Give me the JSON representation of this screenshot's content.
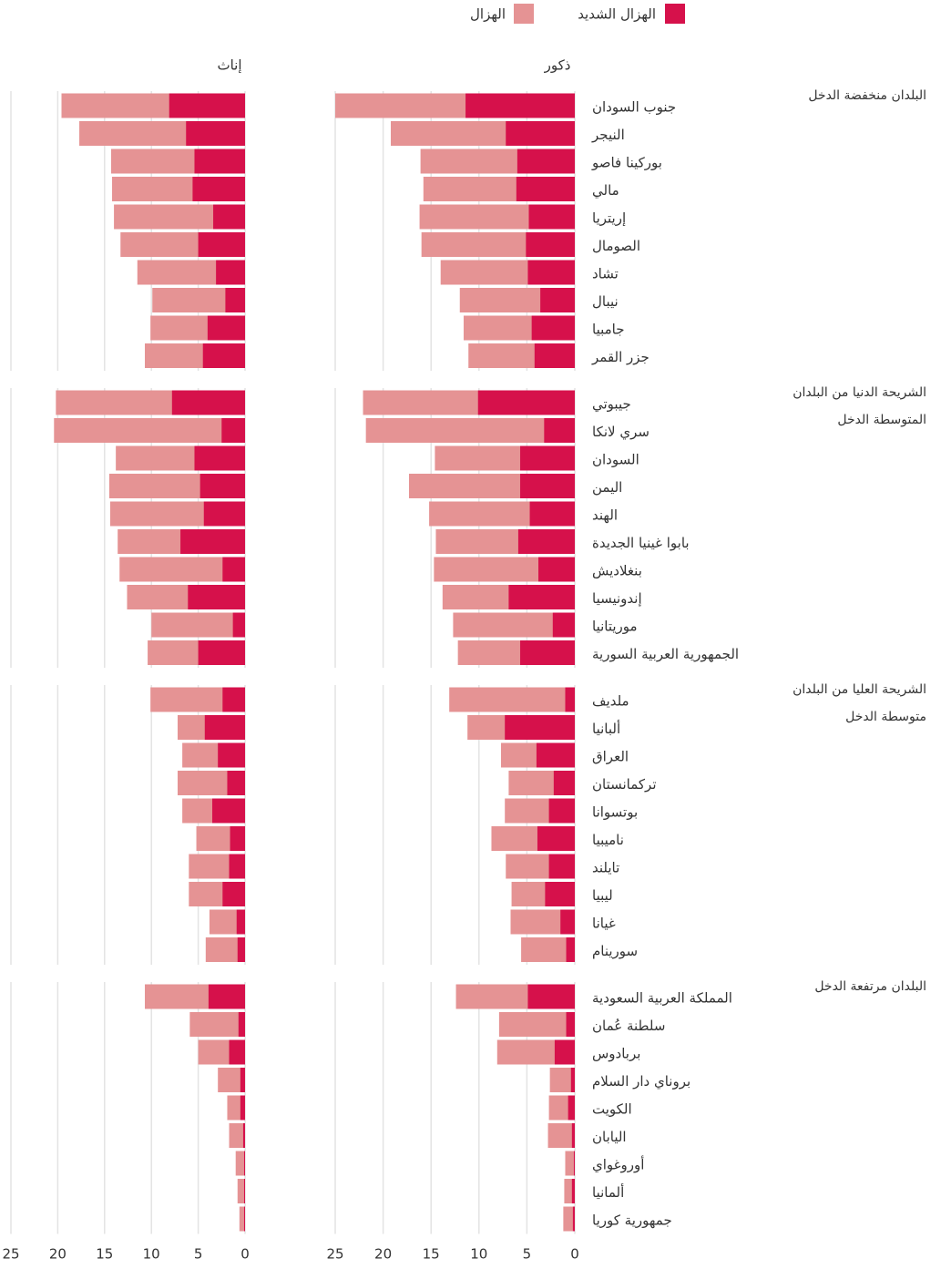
{
  "chart_data": {
    "type": "bar",
    "series": [
      {
        "name": "الهزال الشديد",
        "color": "#d6114b"
      },
      {
        "name": "الهزال",
        "color": "#e59394"
      }
    ],
    "groups": [
      {
        "name": "البلدان منخفضة الدخل",
        "categories": [
          "جنوب السودان",
          "النيجر",
          "بوركينا فاصو",
          "مالي",
          "إريتريا",
          "الصومال",
          "تشاد",
          "نيبال",
          "جامبيا",
          "جزر القمر"
        ]
      },
      {
        "name": "الشريحة الدنيا من البلدان المتوسطة الدخل",
        "categories": [
          "جيبوتي",
          "سري لانكا",
          "السودان",
          "اليمن",
          "الهند",
          "بابوا غينيا الجديدة",
          "بنغلاديش",
          "إندونيسيا",
          "موريتانيا",
          "الجمهورية العربية السورية"
        ]
      },
      {
        "name": "الشريحة العليا من البلدان متوسطة الدخل",
        "categories": [
          "ملديف",
          "ألبانيا",
          "العراق",
          "تركمانستان",
          "بوتسوانا",
          "ناميبيا",
          "تايلند",
          "ليبيا",
          "غيانا",
          "سورينام"
        ]
      },
      {
        "name": "البلدان مرتفعة الدخل",
        "categories": [
          "المملكة العربية السعودية",
          "سلطنة عُمان",
          "بربادوس",
          "بروناي دار السلام",
          "الكويت",
          "اليابان",
          "أوروغواي",
          "ألمانيا",
          "جمهورية كوريا"
        ]
      }
    ],
    "panels": [
      {
        "title": "ذكور",
        "xlim": [
          0,
          25
        ],
        "xticks": [
          0,
          5,
          10,
          15,
          20,
          25
        ],
        "values": [
          [
            [
              11.4,
              7.2,
              6.0,
              6.1,
              4.8,
              5.1,
              4.9,
              3.6,
              4.5,
              4.2
            ],
            [
              25.0,
              19.2,
              16.1,
              15.8,
              16.2,
              16.0,
              14.0,
              12.0,
              11.6,
              11.1
            ]
          ],
          [
            [
              10.1,
              3.2,
              5.7,
              5.7,
              4.7,
              5.9,
              3.8,
              6.9,
              2.3,
              5.7
            ],
            [
              22.1,
              21.8,
              14.6,
              17.3,
              15.2,
              14.5,
              14.7,
              13.8,
              12.7,
              12.2
            ]
          ],
          [
            [
              1.0,
              7.3,
              4.0,
              2.2,
              2.7,
              3.9,
              2.7,
              3.1,
              1.5,
              0.9
            ],
            [
              13.1,
              11.2,
              7.7,
              6.9,
              7.3,
              8.7,
              7.2,
              6.6,
              6.7,
              5.6
            ]
          ],
          [
            [
              4.9,
              0.9,
              2.1,
              0.4,
              0.7,
              0.3,
              0.1,
              0.3,
              0.2
            ],
            [
              12.4,
              7.9,
              8.1,
              2.6,
              2.7,
              2.8,
              1.0,
              1.1,
              1.2
            ]
          ]
        ]
      },
      {
        "title": "إناث",
        "xlim": [
          0,
          25
        ],
        "xticks": [
          0,
          5,
          10,
          15,
          20,
          25
        ],
        "values": [
          [
            [
              8.1,
              6.3,
              5.4,
              5.6,
              3.4,
              5.0,
              3.1,
              2.1,
              4.0,
              4.5
            ],
            [
              19.6,
              17.7,
              14.3,
              14.2,
              14.0,
              13.3,
              11.5,
              9.9,
              10.1,
              10.7
            ]
          ],
          [
            [
              7.8,
              2.5,
              5.4,
              4.8,
              4.4,
              6.9,
              2.4,
              6.1,
              1.3,
              5.0
            ],
            [
              20.2,
              20.4,
              13.8,
              14.5,
              14.4,
              13.6,
              13.4,
              12.6,
              10.0,
              10.4
            ]
          ],
          [
            [
              2.4,
              4.3,
              2.9,
              1.9,
              3.5,
              1.6,
              1.7,
              2.4,
              0.9,
              0.8
            ],
            [
              10.1,
              7.2,
              6.7,
              7.2,
              6.7,
              5.2,
              6.0,
              6.0,
              3.8,
              4.2
            ]
          ],
          [
            [
              3.9,
              0.7,
              1.7,
              0.5,
              0.5,
              0.2,
              0.1,
              0.1,
              0.1
            ],
            [
              10.7,
              5.9,
              5.0,
              2.9,
              1.9,
              1.7,
              1.0,
              0.8,
              0.6
            ]
          ]
        ]
      }
    ]
  }
}
